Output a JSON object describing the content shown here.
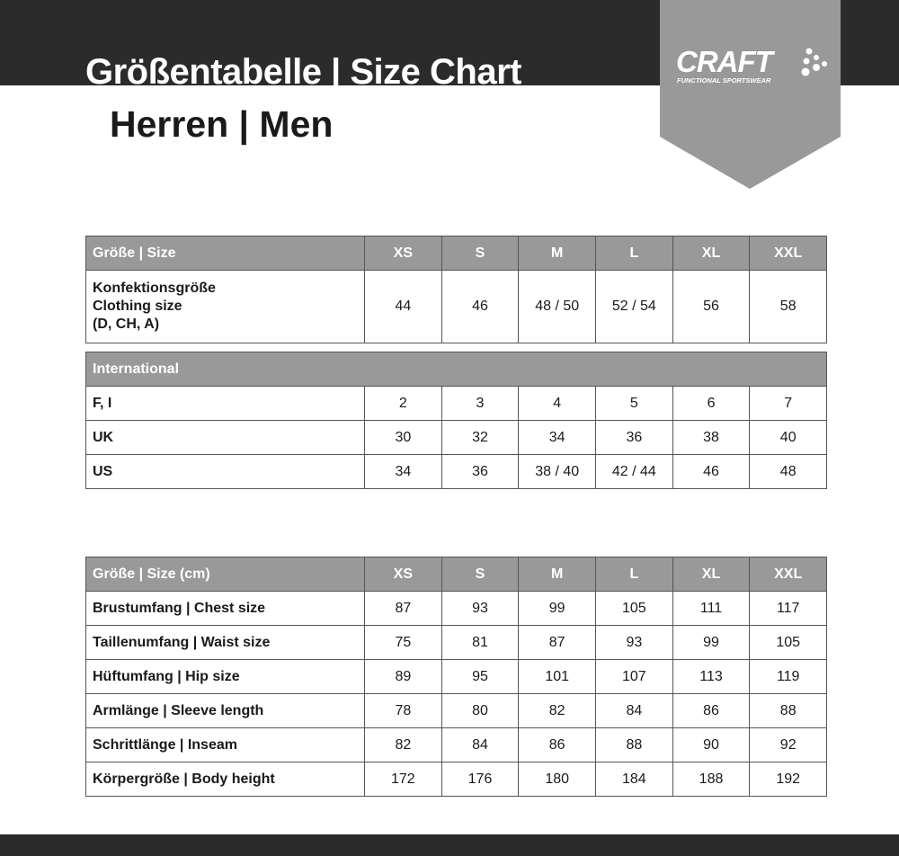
{
  "header": {
    "title": "Größentabelle | Size Chart",
    "subtitle": "Herren | Men"
  },
  "logo": {
    "brand": "CRAFT",
    "tagline": "FUNCTIONAL SPORTSWEAR"
  },
  "colors": {
    "band": "#2b2b2b",
    "header_row": "#999999",
    "logo_bg": "#999999"
  },
  "size_table": {
    "header": {
      "label": "Größe | Size",
      "cells": [
        "XS",
        "S",
        "M",
        "L",
        "XL",
        "XXL"
      ]
    },
    "clothing": {
      "label": "Konfektionsgröße\nClothing size\n(D, CH, A)",
      "cells": [
        "44",
        "46",
        "48 / 50",
        "52 / 54",
        "56",
        "58"
      ]
    },
    "international_label": "International",
    "rows": [
      {
        "label": "F, I",
        "cells": [
          "2",
          "3",
          "4",
          "5",
          "6",
          "7"
        ]
      },
      {
        "label": "UK",
        "cells": [
          "30",
          "32",
          "34",
          "36",
          "38",
          "40"
        ]
      },
      {
        "label": "US",
        "cells": [
          "34",
          "36",
          "38 / 40",
          "42 / 44",
          "46",
          "48"
        ]
      }
    ]
  },
  "measure_table": {
    "header": {
      "label": "Größe | Size (cm)",
      "cells": [
        "XS",
        "S",
        "M",
        "L",
        "XL",
        "XXL"
      ]
    },
    "rows": [
      {
        "label": "Brustumfang | Chest size",
        "cells": [
          "87",
          "93",
          "99",
          "105",
          "111",
          "117"
        ]
      },
      {
        "label": "Taillenumfang | Waist size",
        "cells": [
          "75",
          "81",
          "87",
          "93",
          "99",
          "105"
        ]
      },
      {
        "label": "Hüftumfang | Hip size",
        "cells": [
          "89",
          "95",
          "101",
          "107",
          "113",
          "119"
        ]
      },
      {
        "label": "Armlänge | Sleeve length",
        "cells": [
          "78",
          "80",
          "82",
          "84",
          "86",
          "88"
        ]
      },
      {
        "label": "Schrittlänge | Inseam",
        "cells": [
          "82",
          "84",
          "86",
          "88",
          "90",
          "92"
        ]
      },
      {
        "label": "Körpergröße | Body height",
        "cells": [
          "172",
          "176",
          "180",
          "184",
          "188",
          "192"
        ]
      }
    ]
  }
}
